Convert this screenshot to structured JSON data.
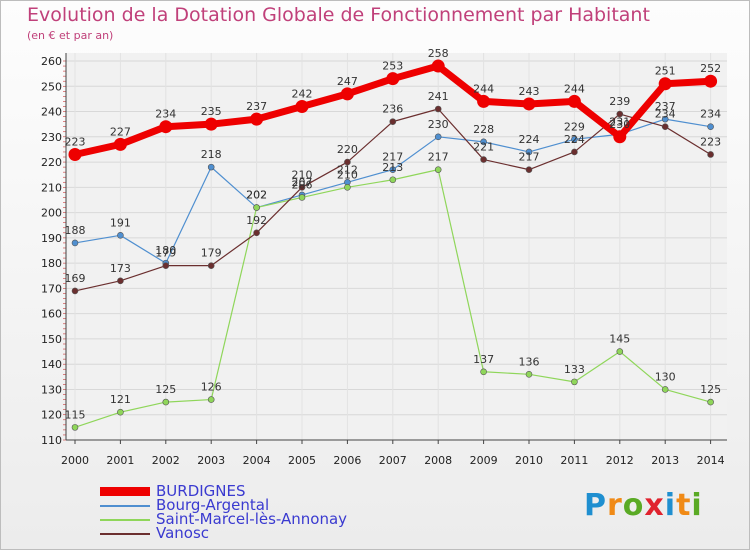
{
  "title": "Evolution de la Dotation Globale de Fonctionnement par Habitant",
  "subtitle": "(en € et par an)",
  "logo": {
    "letters": [
      "P",
      "r",
      "o",
      "x",
      "i",
      "t",
      "i"
    ],
    "colors": [
      "#1f8fd0",
      "#f08a16",
      "#5aaa25",
      "#e0232e",
      "#1f8fd0",
      "#f08a16",
      "#5aaa25"
    ]
  },
  "chart_data": {
    "type": "line",
    "title": "Evolution de la Dotation Globale de Fonctionnement par Habitant",
    "subtitle": "(en € et par an)",
    "xlabel": "",
    "ylabel": "",
    "ylim": [
      110,
      260
    ],
    "yticks": [
      "110",
      "120",
      "130",
      "140",
      "150",
      "160",
      "170",
      "180",
      "190",
      "200",
      "210",
      "220",
      "230",
      "240",
      "250",
      "260"
    ],
    "grid": true,
    "legend_position": "bottom",
    "x": [
      "2000",
      "2001",
      "2002",
      "2003",
      "2004",
      "2005",
      "2006",
      "2007",
      "2008",
      "2009",
      "2010",
      "2011",
      "2012",
      "2013",
      "2014"
    ],
    "series": [
      {
        "name": "BURDIGNES",
        "color": "#ee0000",
        "values": [
          223,
          227,
          234,
          235,
          237,
          242,
          247,
          253,
          258,
          244,
          243,
          244,
          230,
          251,
          252
        ]
      },
      {
        "name": "Bourg-Argental",
        "color": "#4f8fd0",
        "values": [
          188,
          191,
          180,
          218,
          202,
          207,
          212,
          217,
          230,
          228,
          224,
          229,
          231,
          237,
          234
        ]
      },
      {
        "name": "Saint-Marcel-lès-Annonay",
        "color": "#8fd65a",
        "values": [
          115,
          121,
          125,
          126,
          202,
          206,
          210,
          213,
          217,
          137,
          136,
          133,
          145,
          130,
          125
        ]
      },
      {
        "name": "Vanosc",
        "color": "#6b2f2f",
        "values": [
          169,
          173,
          179,
          179,
          192,
          210,
          220,
          236,
          241,
          221,
          217,
          224,
          239,
          234,
          223
        ]
      }
    ]
  }
}
